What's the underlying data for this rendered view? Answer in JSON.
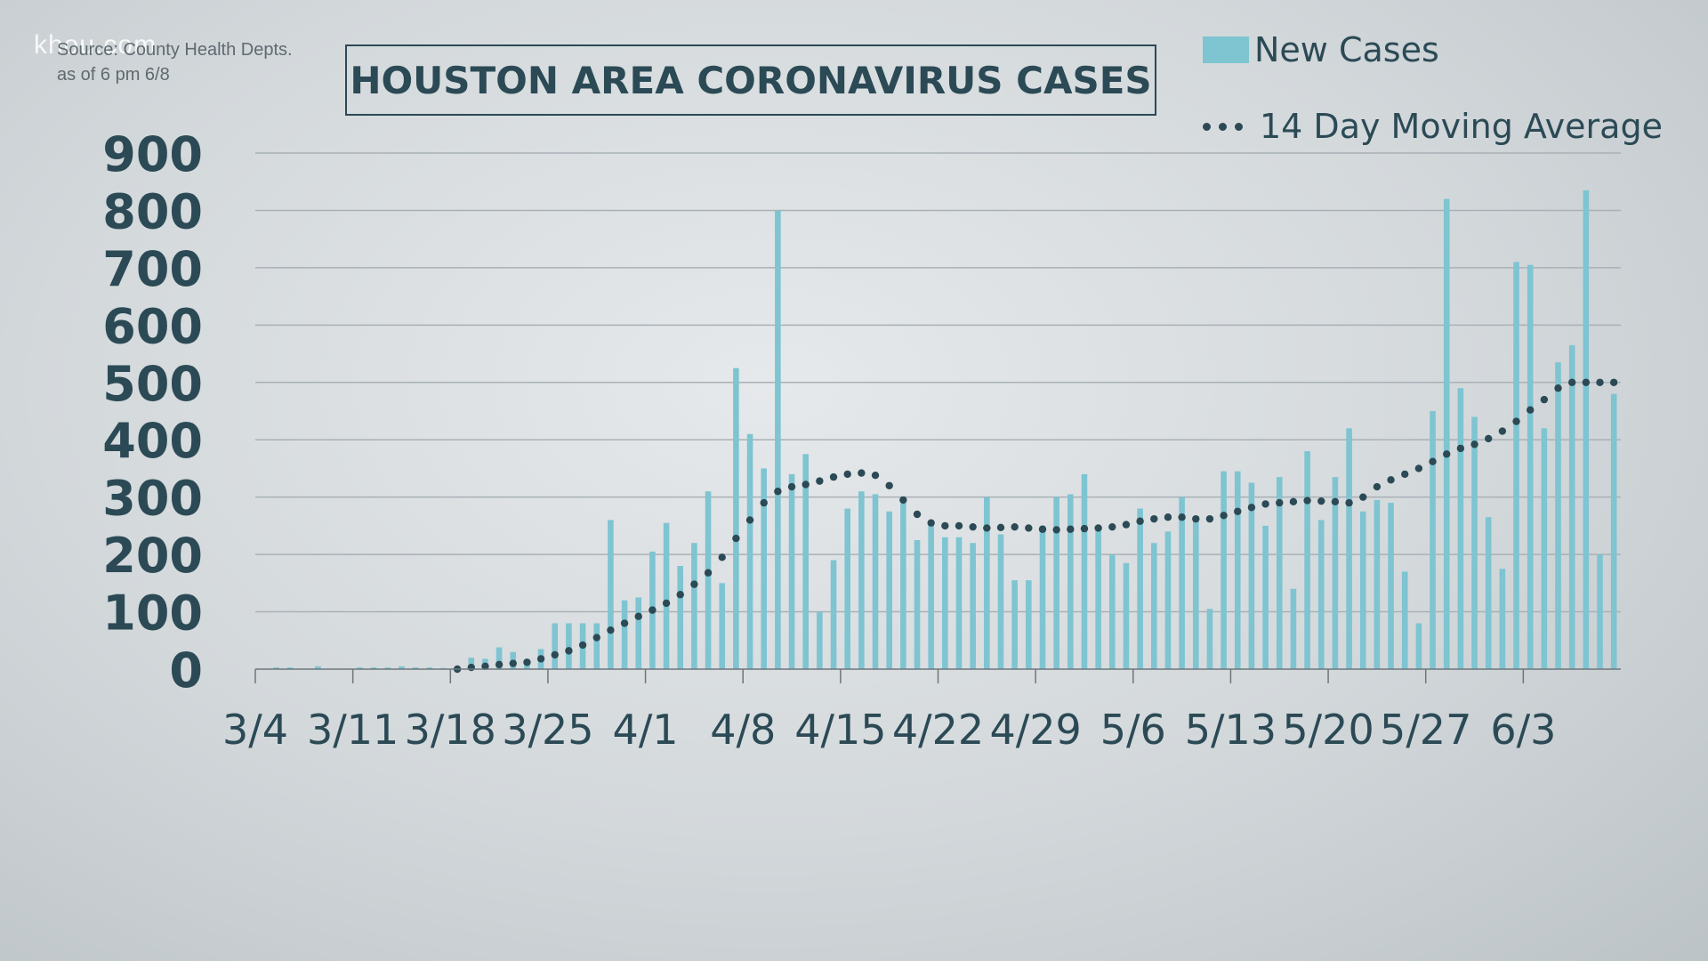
{
  "watermark": "khou.com",
  "source": {
    "line1": "Source: County Health Depts.",
    "line2": "as of 6 pm 6/8"
  },
  "colors": {
    "bar": "#7ec4d1",
    "dots": "#2b4a55",
    "text": "#2b4a55",
    "grid": "#a9b1b6"
  },
  "chart_data": {
    "type": "bar",
    "title": "HOUSTON AREA CORONAVIRUS CASES",
    "xlabel": "",
    "ylabel": "",
    "ylim": [
      0,
      900
    ],
    "yticks": [
      0,
      100,
      200,
      300,
      400,
      500,
      600,
      700,
      800,
      900
    ],
    "legend": [
      "New Cases",
      "14 Day Moving Average"
    ],
    "legend_position": "top-right",
    "x_tick_labels": [
      "3/4",
      "3/11",
      "3/18",
      "3/25",
      "4/1",
      "4/8",
      "4/15",
      "4/22",
      "4/29",
      "5/6",
      "5/13",
      "5/20",
      "5/27",
      "6/3"
    ],
    "x_tick_day_index": [
      0,
      7,
      14,
      21,
      28,
      35,
      42,
      49,
      56,
      63,
      70,
      77,
      84,
      91
    ],
    "series": [
      {
        "name": "New Cases",
        "type": "bar",
        "values": [
          0,
          3,
          3,
          0,
          5,
          0,
          0,
          3,
          3,
          3,
          5,
          3,
          3,
          2,
          1,
          20,
          18,
          38,
          30,
          12,
          35,
          80,
          80,
          80,
          80,
          260,
          120,
          125,
          205,
          255,
          180,
          220,
          310,
          150,
          525,
          410,
          350,
          800,
          340,
          375,
          100,
          190,
          280,
          310,
          305,
          275,
          290,
          225,
          255,
          230,
          230,
          220,
          300,
          235,
          155,
          155,
          250,
          300,
          305,
          340,
          245,
          200,
          185,
          280,
          220,
          240,
          300,
          265,
          105,
          345,
          345,
          325,
          250,
          335,
          140,
          380,
          260,
          335,
          420,
          275,
          295,
          290,
          170,
          80,
          450,
          820,
          490,
          440,
          265,
          175,
          710,
          705,
          420,
          535,
          565,
          835,
          200,
          480
        ]
      },
      {
        "name": "14 Day Moving Average",
        "type": "line-dotted",
        "values": [
          0,
          0,
          0,
          0,
          0,
          0,
          0,
          0,
          0,
          0,
          0,
          0,
          0,
          0,
          0,
          3,
          5,
          8,
          10,
          12,
          18,
          25,
          32,
          42,
          55,
          68,
          80,
          92,
          103,
          115,
          130,
          148,
          168,
          195,
          228,
          260,
          290,
          310,
          318,
          322,
          328,
          335,
          340,
          342,
          338,
          320,
          295,
          270,
          255,
          250,
          250,
          248,
          246,
          247,
          248,
          246,
          244,
          243,
          244,
          245,
          246,
          248,
          252,
          258,
          262,
          265,
          265,
          262,
          262,
          268,
          275,
          282,
          288,
          290,
          292,
          294,
          293,
          292,
          290,
          300,
          318,
          330,
          340,
          350,
          362,
          375,
          385,
          392,
          402,
          415,
          432,
          452,
          470,
          490,
          500,
          500,
          500,
          500
        ]
      }
    ]
  }
}
